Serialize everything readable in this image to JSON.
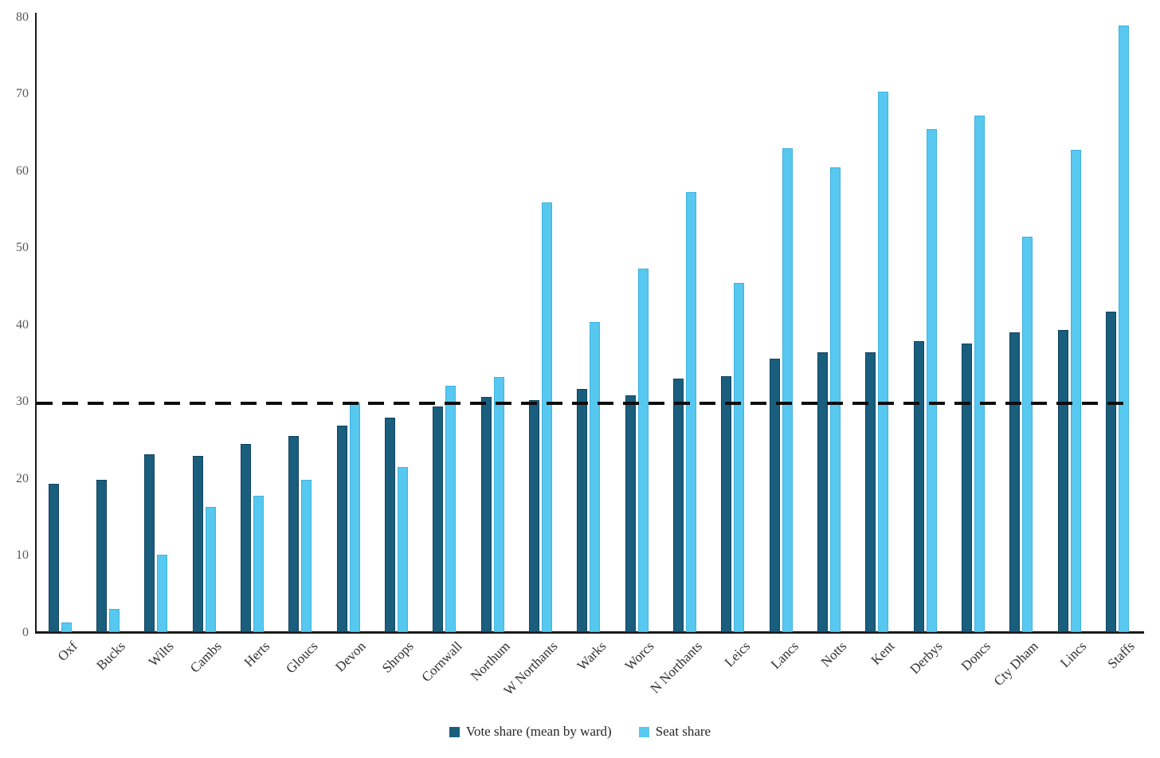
{
  "chart_data": {
    "type": "bar",
    "categories": [
      "Oxf",
      "Bucks",
      "Wilts",
      "Cambs",
      "Herts",
      "Gloucs",
      "Devon",
      "Shrops",
      "Cornwall",
      "Northum",
      "W Northants",
      "Warks",
      "Worcs",
      "N Northants",
      "Leics",
      "Lancs",
      "Notts",
      "Kent",
      "Derbys",
      "Doncs",
      "Cty Dham",
      "Lincs",
      "Staffs"
    ],
    "series": [
      {
        "name": "Vote share (mean by ward)",
        "color": "#1A5E7E",
        "values": [
          19.3,
          19.8,
          23.2,
          23.0,
          24.5,
          25.5,
          26.9,
          27.9,
          29.4,
          30.6,
          30.2,
          31.7,
          30.8,
          33.0,
          33.3,
          35.6,
          36.4,
          36.4,
          37.9,
          37.6,
          39.0,
          39.3,
          41.7
        ]
      },
      {
        "name": "Seat share",
        "color": "#57C8F0",
        "values": [
          1.3,
          3.1,
          10.1,
          16.3,
          17.8,
          19.9,
          29.9,
          21.5,
          32.1,
          33.2,
          55.9,
          40.4,
          47.3,
          57.3,
          45.5,
          63.0,
          60.5,
          70.3,
          65.5,
          67.2,
          51.5,
          62.8,
          78.9
        ]
      }
    ],
    "yticks": [
      0,
      10,
      20,
      30,
      40,
      50,
      60,
      70,
      80
    ],
    "ylim": [
      0,
      80
    ],
    "grid": false,
    "legend_position": "bottom",
    "reference_line": {
      "y": 29.8,
      "style": "dashed",
      "color": "#0d0d0d"
    }
  }
}
